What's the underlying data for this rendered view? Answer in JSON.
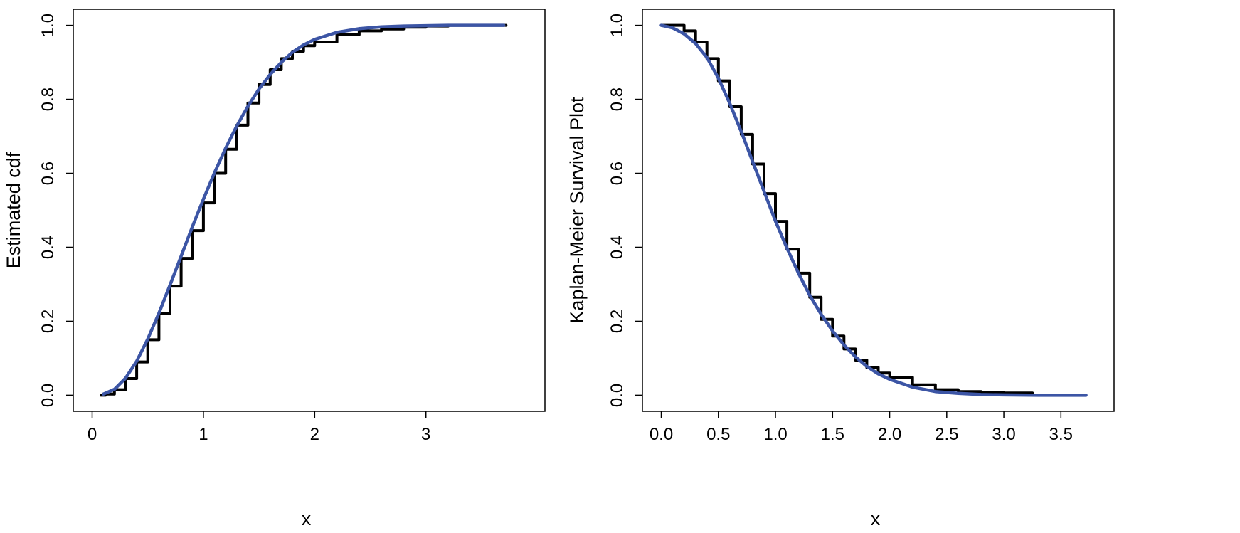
{
  "colors": {
    "empirical": "#000000",
    "fitted": "#3c55a5",
    "axis": "#000000",
    "background": "#ffffff"
  },
  "chart_data": [
    {
      "type": "line",
      "title": "",
      "xlabel": "x",
      "ylabel": "Estimated cdf",
      "xlim": [
        0,
        3.9
      ],
      "ylim": [
        0,
        1.0
      ],
      "xticks": [
        0,
        1,
        2,
        3
      ],
      "xtick_labels": [
        "0",
        "1",
        "2",
        "3"
      ],
      "yticks": [
        0,
        0.2,
        0.4,
        0.6,
        0.8,
        1.0
      ],
      "ytick_labels": [
        "0.0",
        "0.2",
        "0.4",
        "0.6",
        "0.8",
        "1.0"
      ],
      "grid": false,
      "legend": "none",
      "series": [
        {
          "style": "step",
          "color": "#000000",
          "x": [
            0.08,
            0.12,
            0.2,
            0.3,
            0.4,
            0.5,
            0.6,
            0.7,
            0.8,
            0.9,
            1.0,
            1.1,
            1.2,
            1.3,
            1.4,
            1.5,
            1.6,
            1.7,
            1.8,
            1.9,
            2.0,
            2.2,
            2.4,
            2.6,
            2.8,
            3.0,
            3.2,
            3.4,
            3.72
          ],
          "y": [
            0.0,
            0.003,
            0.015,
            0.045,
            0.09,
            0.15,
            0.22,
            0.295,
            0.37,
            0.445,
            0.52,
            0.6,
            0.665,
            0.73,
            0.79,
            0.84,
            0.88,
            0.91,
            0.93,
            0.945,
            0.955,
            0.975,
            0.985,
            0.99,
            0.995,
            0.998,
            1.0,
            1.0,
            1.0
          ]
        },
        {
          "style": "smooth",
          "color": "#3c55a5",
          "x": [
            0.1,
            0.2,
            0.3,
            0.4,
            0.5,
            0.6,
            0.7,
            0.8,
            0.9,
            1.0,
            1.1,
            1.2,
            1.3,
            1.4,
            1.5,
            1.6,
            1.7,
            1.8,
            1.9,
            2.0,
            2.2,
            2.4,
            2.6,
            2.8,
            3.0,
            3.2,
            3.4,
            3.7
          ],
          "y": [
            0.003,
            0.016,
            0.046,
            0.092,
            0.152,
            0.222,
            0.298,
            0.376,
            0.455,
            0.53,
            0.602,
            0.668,
            0.728,
            0.781,
            0.828,
            0.867,
            0.9,
            0.927,
            0.947,
            0.962,
            0.981,
            0.991,
            0.996,
            0.998,
            0.999,
            1.0,
            1.0,
            1.0
          ]
        }
      ]
    },
    {
      "type": "line",
      "title": "",
      "xlabel": "x",
      "ylabel": "Kaplan-Meier Survival Plot",
      "xlim": [
        0,
        3.8
      ],
      "ylim": [
        0,
        1.0
      ],
      "xticks": [
        0,
        0.5,
        1.0,
        1.5,
        2.0,
        2.5,
        3.0,
        3.5
      ],
      "xtick_labels": [
        "0.0",
        "0.5",
        "1.0",
        "1.5",
        "2.0",
        "2.5",
        "3.0",
        "3.5"
      ],
      "yticks": [
        0,
        0.2,
        0.4,
        0.6,
        0.8,
        1.0
      ],
      "ytick_labels": [
        "0.0",
        "0.2",
        "0.4",
        "0.6",
        "0.8",
        "1.0"
      ],
      "grid": false,
      "legend": "none",
      "series": [
        {
          "style": "step",
          "color": "#000000",
          "x": [
            0,
            0.1,
            0.2,
            0.3,
            0.4,
            0.5,
            0.6,
            0.7,
            0.8,
            0.9,
            1.0,
            1.1,
            1.2,
            1.3,
            1.4,
            1.5,
            1.6,
            1.7,
            1.8,
            1.9,
            2.0,
            2.2,
            2.4,
            2.6,
            2.8,
            3.0,
            3.25
          ],
          "y": [
            1.0,
            1.0,
            0.985,
            0.955,
            0.91,
            0.85,
            0.78,
            0.705,
            0.625,
            0.545,
            0.47,
            0.395,
            0.33,
            0.265,
            0.205,
            0.16,
            0.125,
            0.095,
            0.075,
            0.06,
            0.048,
            0.028,
            0.015,
            0.01,
            0.008,
            0.006,
            0.005
          ]
        },
        {
          "style": "smooth",
          "color": "#3c55a5",
          "x": [
            0,
            0.1,
            0.2,
            0.3,
            0.4,
            0.5,
            0.6,
            0.7,
            0.8,
            0.9,
            1.0,
            1.1,
            1.2,
            1.3,
            1.4,
            1.5,
            1.6,
            1.7,
            1.8,
            1.9,
            2.0,
            2.2,
            2.4,
            2.6,
            2.8,
            3.0,
            3.3,
            3.72
          ],
          "y": [
            1.0,
            0.993,
            0.977,
            0.951,
            0.913,
            0.857,
            0.789,
            0.713,
            0.632,
            0.551,
            0.471,
            0.398,
            0.331,
            0.27,
            0.219,
            0.174,
            0.136,
            0.104,
            0.078,
            0.058,
            0.043,
            0.022,
            0.01,
            0.005,
            0.002,
            0.001,
            0.0,
            0.0
          ]
        }
      ]
    }
  ]
}
